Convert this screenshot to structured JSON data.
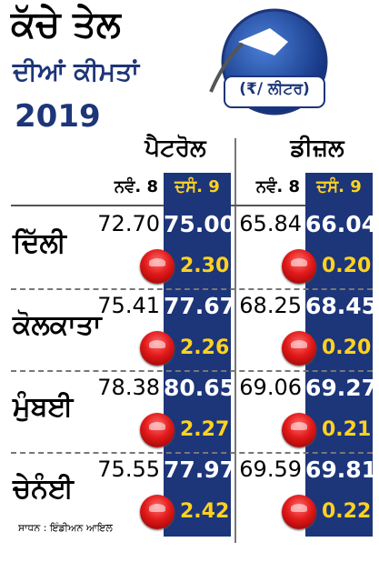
{
  "header": {
    "title_line1": "ਕੱਚੇ ਤੇਲ",
    "title_line2": "ਦੀਆਂ ਕੀਮਤਾਂ",
    "year": "2019",
    "unit": "(₹/ ਲੀਟਰ)"
  },
  "columns": [
    {
      "name": "ਪੈਟਰੋਲ",
      "prev": "ਨਵੰ. 8",
      "curr": "ਦਸੰ. 9"
    },
    {
      "name": "ਡੀਜ਼ਲ",
      "prev": "ਨਵੰ. 8",
      "curr": "ਦਸੰ. 9"
    }
  ],
  "rows": [
    {
      "city": "ਦਿੱਲੀ",
      "values": [
        [
          "72.70",
          "75.00",
          "2.30"
        ],
        [
          "65.84",
          "66.04",
          "0.20"
        ]
      ]
    },
    {
      "city": "ਕੋਲਕਾਤਾ",
      "values": [
        [
          "75.41",
          "77.67",
          "2.26"
        ],
        [
          "68.25",
          "68.45",
          "0.20"
        ]
      ]
    },
    {
      "city": "ਮੁੰਬਈ",
      "values": [
        [
          "78.38",
          "80.65",
          "2.27"
        ],
        [
          "69.06",
          "69.27",
          "0.21"
        ]
      ]
    },
    {
      "city": "ਚੇਨੰਈ",
      "values": [
        [
          "75.55",
          "77.97",
          "2.42"
        ],
        [
          "69.59",
          "69.81",
          "0.22"
        ]
      ]
    }
  ],
  "source": "ਸਾਧਨ : ਇੰਡੀਅਨ ਆਇਲ"
}
